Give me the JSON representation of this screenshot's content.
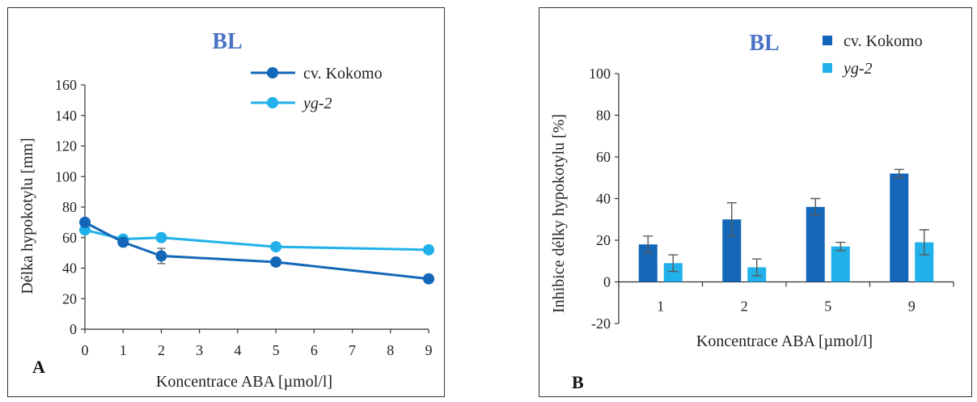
{
  "colors": {
    "series1": "#1467b8",
    "series2": "#21b1ea",
    "title": "#4a72c4",
    "axis": "#333333",
    "error": "#595959"
  },
  "chart_data": [
    {
      "type": "line",
      "panel_label": "A",
      "title": "BL",
      "xlabel": "Koncentrace ABA [µmol/l]",
      "ylabel": "Délka hypokotylu [mm]",
      "xlim": [
        0,
        9
      ],
      "ylim": [
        0,
        160
      ],
      "xticks": [
        "0",
        "1",
        "2",
        "3",
        "4",
        "5",
        "6",
        "7",
        "8",
        "9"
      ],
      "yticks": [
        "0",
        "20",
        "40",
        "60",
        "80",
        "100",
        "120",
        "140",
        "160"
      ],
      "legend_position": "top-right",
      "grid": false,
      "series": [
        {
          "name": "cv. Kokomo",
          "italic": false,
          "x": [
            0,
            1,
            2,
            5,
            9
          ],
          "y": [
            70,
            57,
            48,
            44,
            33
          ],
          "err": [
            2,
            2,
            5,
            2,
            1
          ]
        },
        {
          "name": "yg-2",
          "italic": true,
          "x": [
            0,
            1,
            2,
            5,
            9
          ],
          "y": [
            65,
            59,
            60,
            54,
            52
          ],
          "err": [
            1,
            1,
            1,
            1,
            1
          ]
        }
      ]
    },
    {
      "type": "bar",
      "panel_label": "B",
      "title": "BL",
      "xlabel": "Koncentrace ABA [µmol/l]",
      "ylabel": "Inhibice délky hypokotylu [%]",
      "categories": [
        "1",
        "2",
        "5",
        "9"
      ],
      "ylim": [
        -20,
        100
      ],
      "yticks": [
        "-20",
        "0",
        "20",
        "40",
        "60",
        "80",
        "100"
      ],
      "legend_position": "top-right",
      "grid": false,
      "series": [
        {
          "name": "cv. Kokomo",
          "italic": false,
          "values": [
            18,
            30,
            36,
            52
          ],
          "err": [
            4,
            8,
            4,
            2
          ]
        },
        {
          "name": "yg-2",
          "italic": true,
          "values": [
            9,
            7,
            17,
            19
          ],
          "err": [
            4,
            4,
            2,
            6
          ]
        }
      ]
    }
  ]
}
